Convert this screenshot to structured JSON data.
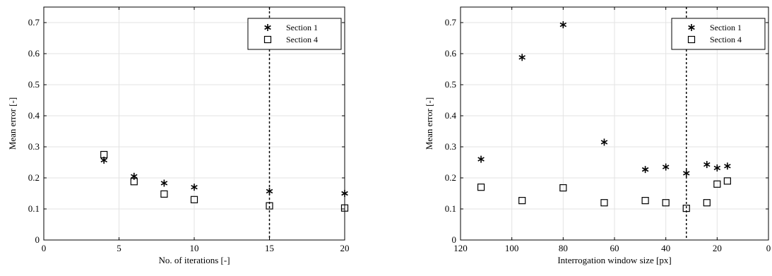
{
  "chart_data": [
    {
      "type": "scatter",
      "title": "",
      "xlabel": "No. of iterations [-]",
      "ylabel": "Mean error [-]",
      "xlim": [
        0,
        20
      ],
      "ylim": [
        0,
        0.75
      ],
      "xticks": [
        0,
        5,
        10,
        15,
        20
      ],
      "yticks": [
        0,
        0.1,
        0.2,
        0.3,
        0.4,
        0.5,
        0.6,
        0.7
      ],
      "xticklabels": [
        "0",
        "5",
        "10",
        "15",
        "20"
      ],
      "yticklabels": [
        "0",
        "0.1",
        "0.2",
        "0.3",
        "0.4",
        "0.5",
        "0.6",
        "0.7"
      ],
      "grid": true,
      "x_reversed": false,
      "legend": "top-right",
      "vline": 15,
      "series": [
        {
          "name": "Section 1",
          "marker": "asterisk",
          "x": [
            4,
            6,
            8,
            10,
            15,
            20
          ],
          "y": [
            0.257,
            0.205,
            0.183,
            0.17,
            0.157,
            0.15
          ]
        },
        {
          "name": "Section 4",
          "marker": "square",
          "x": [
            4,
            6,
            8,
            10,
            15,
            20
          ],
          "y": [
            0.275,
            0.188,
            0.148,
            0.13,
            0.11,
            0.103
          ]
        }
      ]
    },
    {
      "type": "scatter",
      "title": "",
      "xlabel": "Interrogation window size [px]",
      "ylabel": "Mean error [-]",
      "xlim": [
        120,
        0
      ],
      "ylim": [
        0,
        0.75
      ],
      "xticks": [
        120,
        100,
        80,
        60,
        40,
        20,
        0
      ],
      "yticks": [
        0,
        0.1,
        0.2,
        0.3,
        0.4,
        0.5,
        0.6,
        0.7
      ],
      "xticklabels": [
        "120",
        "100",
        "80",
        "60",
        "40",
        "20",
        "0"
      ],
      "yticklabels": [
        "0",
        "0.1",
        "0.2",
        "0.3",
        "0.4",
        "0.5",
        "0.6",
        "0.7"
      ],
      "grid": true,
      "x_reversed": true,
      "legend": "top-right",
      "vline": 32,
      "series": [
        {
          "name": "Section 1",
          "marker": "asterisk",
          "x": [
            112,
            96,
            80,
            64,
            48,
            40,
            32,
            24,
            20,
            16
          ],
          "y": [
            0.26,
            0.588,
            0.693,
            0.315,
            0.227,
            0.235,
            0.215,
            0.243,
            0.232,
            0.238
          ]
        },
        {
          "name": "Section 4",
          "marker": "square",
          "x": [
            112,
            96,
            80,
            64,
            48,
            40,
            32,
            24,
            20,
            16
          ],
          "y": [
            0.17,
            0.127,
            0.168,
            0.12,
            0.127,
            0.12,
            0.102,
            0.12,
            0.18,
            0.19
          ]
        }
      ]
    }
  ]
}
